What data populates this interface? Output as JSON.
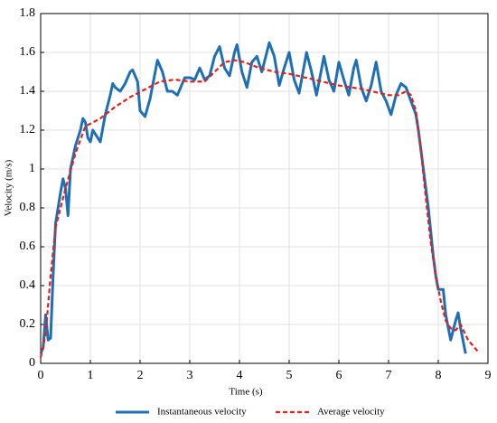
{
  "chart_data": {
    "type": "line",
    "x_label": "Time (s)",
    "y_label": "Velocity (m/s)",
    "xlim": [
      0,
      9
    ],
    "ylim": [
      0,
      1.8
    ],
    "xticks": [
      0,
      1,
      2,
      3,
      4,
      5,
      6,
      7,
      8,
      9
    ],
    "yticks": [
      0,
      0.2,
      0.4,
      0.6,
      0.8,
      1,
      1.2,
      1.4,
      1.6,
      1.8
    ],
    "grid": true,
    "legend": "bottom",
    "series": [
      {
        "name": "Instantaneous velocity",
        "color": "#1f6fb4",
        "dash": "solid",
        "x": [
          0,
          0.05,
          0.1,
          0.15,
          0.2,
          0.25,
          0.3,
          0.4,
          0.45,
          0.5,
          0.55,
          0.6,
          0.7,
          0.8,
          0.85,
          0.9,
          0.95,
          1,
          1.05,
          1.1,
          1.2,
          1.3,
          1.4,
          1.45,
          1.5,
          1.6,
          1.7,
          1.8,
          1.85,
          1.95,
          2,
          2.1,
          2.2,
          2.35,
          2.45,
          2.55,
          2.65,
          2.75,
          2.9,
          3,
          3.1,
          3.2,
          3.3,
          3.4,
          3.5,
          3.6,
          3.7,
          3.8,
          3.9,
          3.95,
          4.05,
          4.15,
          4.25,
          4.35,
          4.45,
          4.6,
          4.7,
          4.8,
          4.9,
          5,
          5.1,
          5.2,
          5.35,
          5.45,
          5.55,
          5.7,
          5.8,
          5.9,
          6,
          6.1,
          6.2,
          6.3,
          6.35,
          6.45,
          6.55,
          6.65,
          6.75,
          6.85,
          6.95,
          7.05,
          7.15,
          7.25,
          7.35,
          7.45,
          7.55,
          7.6,
          7.7,
          7.8,
          7.9,
          7.95,
          8,
          8.1,
          8.15,
          8.25,
          8.35,
          8.4,
          8.45,
          8.55
        ],
        "values": [
          0.05,
          0.08,
          0.25,
          0.12,
          0.13,
          0.45,
          0.72,
          0.88,
          0.95,
          0.9,
          0.76,
          1.0,
          1.12,
          1.2,
          1.26,
          1.24,
          1.16,
          1.14,
          1.2,
          1.18,
          1.14,
          1.28,
          1.38,
          1.44,
          1.42,
          1.4,
          1.44,
          1.5,
          1.51,
          1.45,
          1.3,
          1.27,
          1.36,
          1.56,
          1.5,
          1.4,
          1.4,
          1.38,
          1.47,
          1.47,
          1.46,
          1.52,
          1.46,
          1.48,
          1.58,
          1.63,
          1.52,
          1.48,
          1.6,
          1.64,
          1.5,
          1.42,
          1.55,
          1.58,
          1.5,
          1.65,
          1.58,
          1.43,
          1.52,
          1.6,
          1.46,
          1.39,
          1.6,
          1.5,
          1.38,
          1.58,
          1.46,
          1.4,
          1.55,
          1.46,
          1.38,
          1.52,
          1.56,
          1.42,
          1.35,
          1.43,
          1.55,
          1.4,
          1.35,
          1.28,
          1.38,
          1.44,
          1.42,
          1.35,
          1.28,
          1.2,
          1.0,
          0.8,
          0.55,
          0.45,
          0.38,
          0.38,
          0.25,
          0.12,
          0.22,
          0.26,
          0.18,
          0.05
        ]
      },
      {
        "name": "Average velocity",
        "color": "#e3201b",
        "dash": "dashed",
        "x": [
          0,
          0.1,
          0.2,
          0.3,
          0.5,
          0.7,
          0.9,
          1.2,
          1.5,
          1.8,
          2.1,
          2.4,
          2.7,
          3,
          3.3,
          3.5,
          3.7,
          3.9,
          4.1,
          4.4,
          4.7,
          5,
          5.5,
          6,
          6.5,
          7,
          7.2,
          7.35,
          7.45,
          7.55,
          7.65,
          7.75,
          7.85,
          7.95,
          8.05,
          8.15,
          8.25,
          8.35,
          8.45,
          8.6,
          8.8
        ],
        "values": [
          0.03,
          0.15,
          0.45,
          0.7,
          0.9,
          1.08,
          1.22,
          1.26,
          1.32,
          1.37,
          1.41,
          1.45,
          1.46,
          1.45,
          1.45,
          1.5,
          1.55,
          1.56,
          1.55,
          1.52,
          1.5,
          1.49,
          1.46,
          1.43,
          1.41,
          1.38,
          1.38,
          1.4,
          1.38,
          1.3,
          1.1,
          0.85,
          0.62,
          0.45,
          0.32,
          0.22,
          0.18,
          0.17,
          0.2,
          0.12,
          0.06
        ]
      }
    ]
  }
}
